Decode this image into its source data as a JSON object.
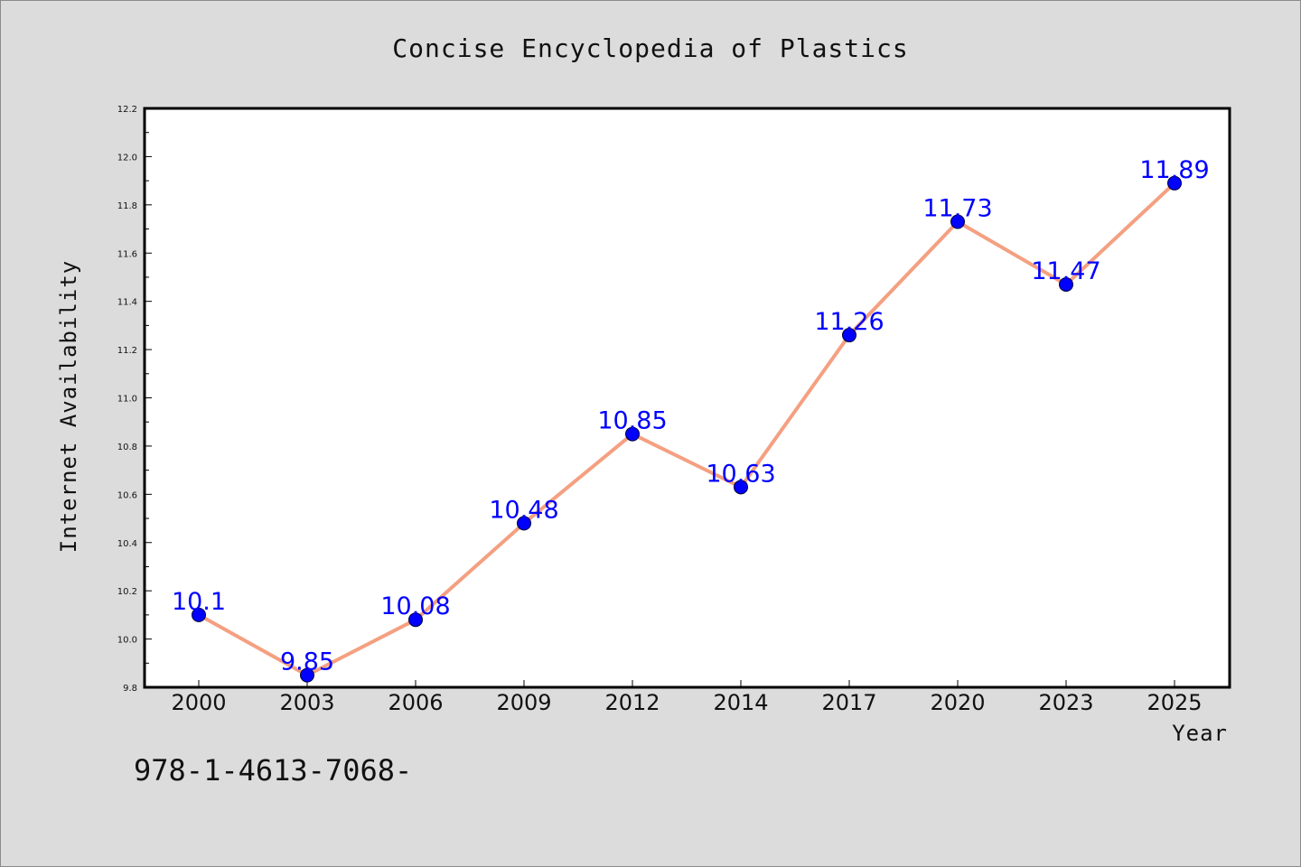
{
  "chart_data": {
    "type": "line",
    "title": "Concise Encyclopedia of Plastics",
    "xlabel": "Year",
    "ylabel": "Internet Availability",
    "categories": [
      "2000",
      "2003",
      "2006",
      "2009",
      "2012",
      "2014",
      "2017",
      "2020",
      "2023",
      "2025"
    ],
    "series": [
      {
        "values": [
          10.1,
          9.85,
          10.08,
          10.48,
          10.85,
          10.63,
          11.26,
          11.73,
          11.47,
          11.89
        ],
        "labels": [
          "10.1",
          "9.85",
          "10.08",
          "10.48",
          "10.85",
          "10.63",
          "11.26",
          "11.73",
          "11.47",
          "11.89"
        ],
        "line_color": "#f4a081",
        "marker_color": "#0000ff",
        "label_color": "#0000ff"
      }
    ],
    "ylim": [
      9.8,
      12.2
    ],
    "yticks": [
      "9.8",
      "10.0",
      "10.2",
      "10.4",
      "10.6",
      "10.8",
      "11.0",
      "11.2",
      "11.4",
      "11.6",
      "11.8",
      "12.0",
      "12.2"
    ],
    "grid": false,
    "legend": "none"
  },
  "footer": {
    "isbn": "978-1-4613-7068-"
  },
  "colors": {
    "background": "#dcdcdc",
    "plot_area": "#ffffff"
  }
}
